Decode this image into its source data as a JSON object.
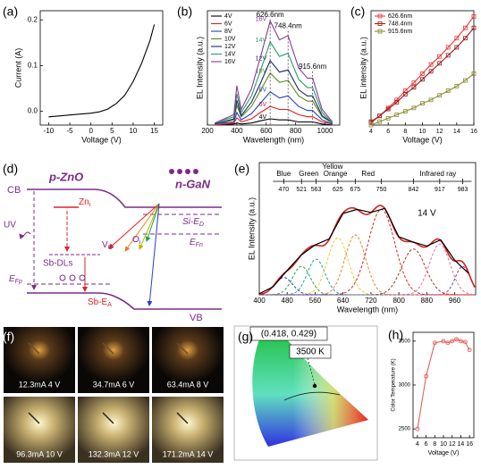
{
  "panels": {
    "d": "(d)",
    "f": "(f)",
    "g": "(g)"
  },
  "chart_data": [
    {
      "type": "line",
      "panel": "(a)",
      "xlabel": "Voltage (V)",
      "ylabel": "Current (A)",
      "xlim": [
        -12,
        17
      ],
      "xticks": [
        -10,
        -5,
        0,
        5,
        10,
        15
      ],
      "ylim": [
        -0.03,
        0.22
      ],
      "yticks": [
        {
          "value": 0,
          "label": "0.0"
        },
        0.1,
        0.2
      ],
      "x": [
        -10,
        -7.5,
        -5,
        -2.5,
        0,
        2,
        4,
        6,
        8,
        10,
        12,
        14,
        15
      ],
      "series": [
        {
          "color": "#000000",
          "values": [
            -0.012,
            -0.01,
            -0.008,
            -0.006,
            -0.004,
            -0.001,
            0.005,
            0.017,
            0.035,
            0.065,
            0.105,
            0.155,
            0.19
          ]
        }
      ]
    },
    {
      "type": "line",
      "panel": "(b)",
      "xlabel": "Wavelength (nm)",
      "ylabel": "EL Intensity (a.u.)",
      "xlim": [
        200,
        1100
      ],
      "xticks": [
        200,
        400,
        600,
        800,
        1000
      ],
      "ylim": [
        0,
        1.1
      ],
      "legend": "top-left",
      "curve_labels": true,
      "x": [
        250,
        380,
        400,
        430,
        500,
        560,
        626.6,
        690,
        748.4,
        820,
        880,
        915.6,
        980,
        1050
      ],
      "series": [
        {
          "name": "4V",
          "color": "#000000",
          "values": [
            0,
            0.01,
            0.02,
            0.01,
            0.02,
            0.04,
            0.06,
            0.05,
            0.05,
            0.03,
            0.03,
            0.03,
            0.01,
            0
          ]
        },
        {
          "name": "6V",
          "color": "#e41a1c",
          "values": [
            0,
            0.02,
            0.07,
            0.03,
            0.06,
            0.12,
            0.18,
            0.15,
            0.15,
            0.1,
            0.08,
            0.08,
            0.03,
            0.01
          ]
        },
        {
          "name": "8V",
          "color": "#1f3fbf",
          "values": [
            0.01,
            0.03,
            0.12,
            0.05,
            0.11,
            0.21,
            0.32,
            0.26,
            0.28,
            0.18,
            0.14,
            0.14,
            0.05,
            0.01
          ]
        },
        {
          "name": "10V",
          "color": "#5a8a1a",
          "values": [
            0.01,
            0.05,
            0.19,
            0.08,
            0.18,
            0.33,
            0.5,
            0.41,
            0.43,
            0.28,
            0.23,
            0.23,
            0.08,
            0.02
          ]
        },
        {
          "name": "12V",
          "color": "#1a2a6a",
          "values": [
            0.01,
            0.06,
            0.24,
            0.09,
            0.22,
            0.4,
            0.62,
            0.51,
            0.53,
            0.34,
            0.28,
            0.28,
            0.09,
            0.02
          ]
        },
        {
          "name": "14V",
          "color": "#2a9a6a",
          "values": [
            0.02,
            0.08,
            0.3,
            0.12,
            0.28,
            0.52,
            0.8,
            0.66,
            0.69,
            0.44,
            0.36,
            0.36,
            0.12,
            0.02
          ]
        },
        {
          "name": "16V",
          "color": "#8a3a9a",
          "values": [
            0.02,
            0.1,
            0.38,
            0.15,
            0.35,
            0.65,
            1.0,
            0.82,
            0.86,
            0.55,
            0.45,
            0.45,
            0.15,
            0.03
          ]
        }
      ],
      "annotations": [
        {
          "text": "626.6nm",
          "x": 626.6,
          "y": 1.06
        },
        {
          "text": "748.4nm",
          "x": 748.4,
          "y": 0.95
        },
        {
          "text": "915.6nm",
          "x": 915.6,
          "y": 0.56
        }
      ]
    },
    {
      "type": "line",
      "panel": "(c)",
      "xlabel": "Voltage (V)",
      "ylabel": "EL intensity (a.u.)",
      "xlim": [
        4,
        16
      ],
      "xticks": [
        4,
        6,
        8,
        10,
        12,
        14,
        16
      ],
      "ylim": [
        0,
        1
      ],
      "legend": "top-left",
      "marker": "square",
      "x": [
        4,
        5,
        6,
        7,
        8,
        9,
        10,
        11,
        12,
        13,
        14,
        15,
        16
      ],
      "series": [
        {
          "name": "626.6nm",
          "color": "#e8383d",
          "values": [
            0.02,
            0.08,
            0.15,
            0.22,
            0.3,
            0.37,
            0.45,
            0.53,
            0.6,
            0.68,
            0.76,
            0.85,
            0.95
          ]
        },
        {
          "name": "748.4nm",
          "color": "#9a1a1a",
          "values": [
            0.03,
            0.08,
            0.14,
            0.2,
            0.27,
            0.33,
            0.4,
            0.47,
            0.54,
            0.61,
            0.68,
            0.76,
            0.85
          ]
        },
        {
          "name": "915.6nm",
          "color": "#8a8a30",
          "values": [
            0,
            0.03,
            0.06,
            0.09,
            0.12,
            0.15,
            0.19,
            0.22,
            0.26,
            0.3,
            0.34,
            0.39,
            0.45
          ]
        }
      ]
    },
    {
      "type": "fit",
      "panel": "(e)",
      "xlabel": "Wavelength (nm)",
      "ylabel": "EL Intensity (a.u.)",
      "xlim": [
        400,
        1020
      ],
      "xticks": [
        400,
        480,
        560,
        640,
        720,
        800,
        880,
        960
      ],
      "ylim": [
        0,
        1.3
      ],
      "x": [
        400,
        440,
        480,
        520,
        560,
        600,
        640,
        680,
        720,
        760,
        800,
        840,
        880,
        920,
        960,
        1000
      ],
      "series": [
        {
          "color": "#000000",
          "values": [
            0.01,
            0.08,
            0.24,
            0.39,
            0.49,
            0.55,
            0.8,
            0.84,
            0.81,
            0.85,
            0.57,
            0.52,
            0.48,
            0.54,
            0.34,
            0.21
          ]
        }
      ],
      "fit_color": "#d62020",
      "components": [
        {
          "center": 470,
          "amplitude": 0.17,
          "fwhm": 60,
          "color": "#2a3ad0"
        },
        {
          "center": 521,
          "amplitude": 0.28,
          "fwhm": 60,
          "color": "#2aa040"
        },
        {
          "center": 563,
          "amplitude": 0.35,
          "fwhm": 60,
          "color": "#20a0a0"
        },
        {
          "center": 625,
          "amplitude": 0.56,
          "fwhm": 70,
          "color": "#e0d020"
        },
        {
          "center": 675,
          "amplitude": 0.59,
          "fwhm": 70,
          "color": "#f08020"
        },
        {
          "center": 750,
          "amplitude": 0.84,
          "fwhm": 90,
          "color": "#e02020"
        },
        {
          "center": 842,
          "amplitude": 0.45,
          "fwhm": 80,
          "color": "#b03030"
        },
        {
          "center": 917,
          "amplitude": 0.5,
          "fwhm": 70,
          "color": "#e070a0"
        },
        {
          "center": 983,
          "amplitude": 0.28,
          "fwhm": 50,
          "color": "#8040a0"
        }
      ],
      "band": {
        "ticks": [
          470,
          521,
          563,
          625,
          675,
          750,
          842,
          917,
          983
        ],
        "regions": [
          {
            "name": "Blue",
            "at": 470
          },
          {
            "name": "Green",
            "at": 542
          },
          {
            "name": "Yellow",
            "at": 610
          },
          {
            "name": "Orange",
            "at": 618
          },
          {
            "name": "Red",
            "at": 712
          },
          {
            "name": "Infrared ray",
            "at": 912
          }
        ]
      },
      "note": {
        "text": "14 V",
        "x": 880,
        "y": 0.8
      }
    },
    {
      "type": "line",
      "panel": "(h)",
      "xlabel": "Voltage (V)",
      "ylabel": "Color Temperature (K)",
      "xlim": [
        3,
        17
      ],
      "xticks": [
        4,
        6,
        8,
        10,
        12,
        14,
        16
      ],
      "ylim": [
        2400,
        3600
      ],
      "yticks": [
        2500,
        3000,
        3500
      ],
      "marker": "circle",
      "x": [
        4,
        6,
        8,
        10,
        11,
        12,
        13,
        14,
        15,
        16
      ],
      "series": [
        {
          "color": "#e06060",
          "values": [
            2500,
            3100,
            3480,
            3500,
            3480,
            3500,
            3520,
            3500,
            3490,
            3400
          ]
        }
      ]
    }
  ],
  "diagram": {
    "cb": "CB",
    "pzno": "p-ZnO",
    "ngan": "n-GaN",
    "zni": {
      "main": "Zn",
      "sub": "i"
    },
    "sied": {
      "main": "Si-E",
      "sub": "D"
    },
    "efn": {
      "main": "E",
      "sub": "Fn"
    },
    "uv": "UV",
    "vo": {
      "main": "V",
      "sub": "O"
    },
    "oi": {
      "main": "O",
      "sub": "i"
    },
    "sbdls": "Sb-DLs",
    "efp": {
      "main": "E",
      "sub": "Fp"
    },
    "sbea": {
      "main": "Sb-E",
      "sub": "A"
    },
    "vb": "VB"
  },
  "photos": {
    "captions": [
      "12.3mA 4 V",
      "34.7mA 6 V",
      "63.4mA 8 V",
      "96.3mA 10 V",
      "132.3mA 12 V",
      "171.2mA 14 V"
    ]
  },
  "cie": {
    "coordinate": "(0.418, 0.429)",
    "cct": "3500 K"
  }
}
